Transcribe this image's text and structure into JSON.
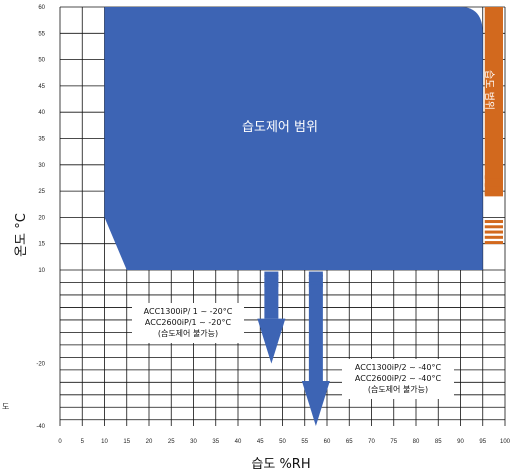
{
  "chart_data": {
    "type": "area",
    "title": "",
    "xlabel": "습도 %RH",
    "ylabel": "온도 °C",
    "xlim": [
      0,
      100
    ],
    "ylim": [
      -40,
      60
    ],
    "x_ticks": [
      0,
      5,
      10,
      15,
      20,
      25,
      30,
      35,
      40,
      45,
      50,
      55,
      60,
      65,
      70,
      75,
      80,
      85,
      90,
      95,
      100
    ],
    "y_ticks": [
      60,
      55,
      50,
      45,
      40,
      35,
      30,
      25,
      20,
      15,
      10,
      -20,
      -40
    ],
    "grid": true,
    "colors": {
      "humidity_zone": "#3d64b4",
      "side_band": "#d2691e",
      "grid": "#111111"
    },
    "humidity_zone": {
      "label": "습도제어 범위",
      "polygon": [
        [
          10,
          60
        ],
        [
          90,
          60
        ],
        [
          95,
          55
        ],
        [
          95,
          10
        ],
        [
          15,
          10
        ],
        [
          10,
          20
        ]
      ]
    },
    "side_band": {
      "label": "습도 범위",
      "x_range": [
        95,
        100
      ],
      "solid_y_range": [
        60,
        20
      ],
      "stripes_y": [
        19.5,
        18.5,
        17.5,
        16.5,
        15.5
      ]
    },
    "arrows": [
      {
        "x": 47.5,
        "dash_y": [
          9.5,
          8.5,
          7.3,
          6.2
        ],
        "tip_y": -20,
        "annotation": [
          "ACC1300iP/ 1 ~ -20°C",
          "ACC2600iP/1 ~ -20°C",
          "(습도제어 불가능)"
        ]
      },
      {
        "x": 57.5,
        "dash_y": [
          9.5,
          8.5,
          7.3,
          6.2
        ],
        "tip_y": -40,
        "annotation": [
          "ACC1300iP/2 ~ -40°C",
          "ACC2600iP/2 ~ -40°C",
          "(습도제어 불가능)"
        ]
      }
    ],
    "stray_text": "도"
  }
}
